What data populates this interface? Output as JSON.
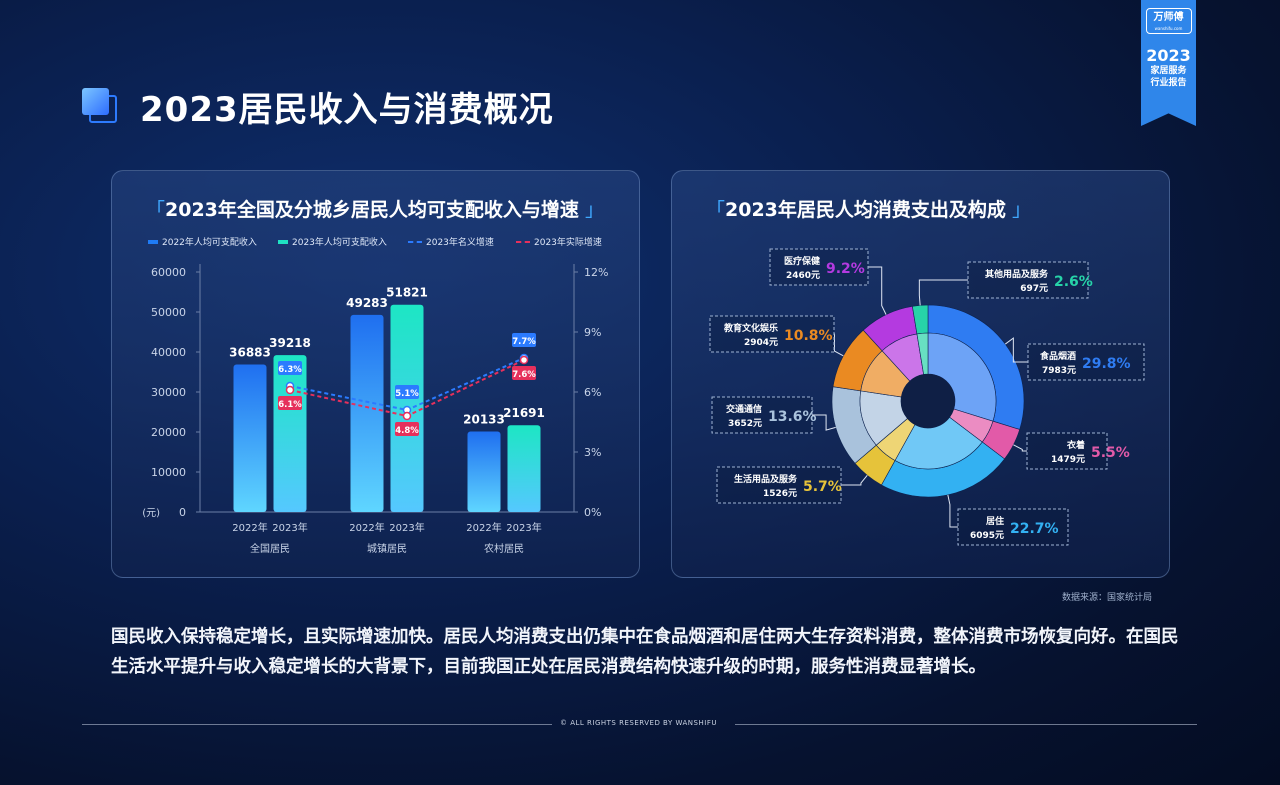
{
  "page_title": "2023居民收入与消费概况",
  "badge": {
    "logo": "万师傅",
    "logo_url": "wanshifu.com",
    "year": "2023",
    "line1": "家居服务",
    "line2": "行业报告"
  },
  "left_card": {
    "title": "2023年全国及分城乡居民人均可支配收入与增速",
    "legend": [
      "2022年人均可支配收入",
      "2023年人均可支配收入",
      "2023年名义增速",
      "2023年实际增速"
    ]
  },
  "right_card": {
    "title": "2023年居民人均消费支出及构成"
  },
  "colors": {
    "bar2022": "#1f7bf5",
    "bar2023": "#1fe1c3",
    "nominal": "#2b7bff",
    "real": "#e6305c",
    "accent": "#3fa8ff"
  },
  "chart_data": [
    {
      "type": "bar",
      "title": "2023年全国及分城乡居民人均可支配收入与增速",
      "groups": [
        "全国居民",
        "城镇居民",
        "农村居民"
      ],
      "sub_categories": [
        "2022年",
        "2023年"
      ],
      "y_unit": "(元)",
      "ylim": [
        0,
        60000
      ],
      "yticks": [
        0,
        10000,
        20000,
        30000,
        40000,
        50000,
        60000
      ],
      "y2lim": [
        0,
        12
      ],
      "y2ticks": [
        "0%",
        "3%",
        "6%",
        "9%",
        "12%"
      ],
      "series": [
        {
          "name": "2022年人均可支配收入",
          "values": [
            36883,
            49283,
            20133
          ]
        },
        {
          "name": "2023年人均可支配收入",
          "values": [
            39218,
            51821,
            21691
          ]
        },
        {
          "name": "2023年名义增速",
          "values": [
            6.3,
            5.1,
            7.7
          ],
          "labels": [
            "6.3%",
            "5.1%",
            "7.7%"
          ]
        },
        {
          "name": "2023年实际增速",
          "values": [
            6.1,
            4.8,
            7.6
          ],
          "labels": [
            "6.1%",
            "4.8%",
            "7.6%"
          ]
        }
      ]
    },
    {
      "type": "pie",
      "title": "2023年居民人均消费支出及构成",
      "slices": [
        {
          "label": "食品烟酒",
          "value": 7983,
          "amount": "7983元",
          "percent": "29.8%",
          "color": "#2f7cf2"
        },
        {
          "label": "衣着",
          "value": 1479,
          "amount": "1479元",
          "percent": "5.5%",
          "color": "#e25aa8"
        },
        {
          "label": "居住",
          "value": 6095,
          "amount": "6095元",
          "percent": "22.7%",
          "color": "#33b1f2"
        },
        {
          "label": "生活用品及服务",
          "value": 1526,
          "amount": "1526元",
          "percent": "5.7%",
          "color": "#e6c33a"
        },
        {
          "label": "交通通信",
          "value": 3652,
          "amount": "3652元",
          "percent": "13.6%",
          "color": "#a9c2dc"
        },
        {
          "label": "教育文化娱乐",
          "value": 2904,
          "amount": "2904元",
          "percent": "10.8%",
          "color": "#ea8a22"
        },
        {
          "label": "医疗保健",
          "value": 2460,
          "amount": "2460元",
          "percent": "9.2%",
          "color": "#b43ae0"
        },
        {
          "label": "其他用品及服务",
          "value": 697,
          "amount": "697元",
          "percent": "2.6%",
          "color": "#27d3a8"
        }
      ]
    }
  ],
  "source": "数据来源：国家统计局",
  "paragraph": "国民收入保持稳定增长，且实际增速加快。居民人均消费支出仍集中在食品烟酒和居住两大生存资料消费，整体消费市场恢复向好。在国民生活水平提升与收入稳定增长的大背景下，目前我国正处在居民消费结构快速升级的时期，服务性消费显著增长。",
  "footer": "© ALL RIGHTS RESERVED BY WANSHIFU"
}
